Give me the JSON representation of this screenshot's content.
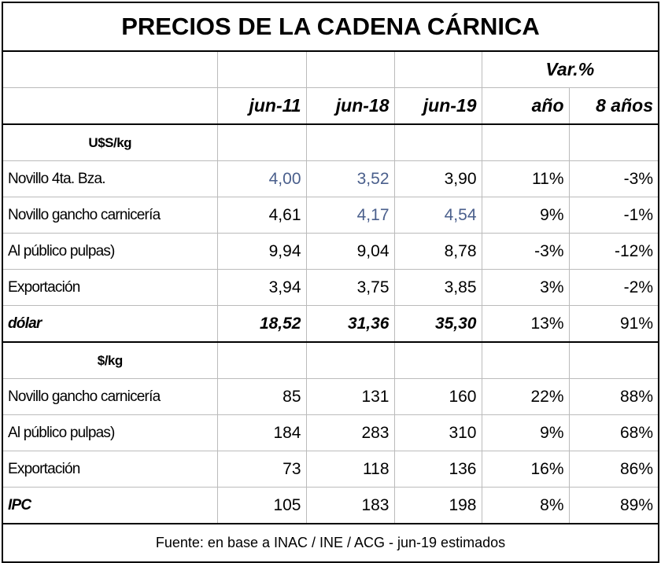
{
  "title": "PRECIOS DE LA CADENA CÁRNICA",
  "header": {
    "group": "Var.%",
    "columns": [
      "jun-11",
      "jun-18",
      "jun-19",
      "año",
      "8 años"
    ]
  },
  "sections": [
    {
      "label": "U$S/kg",
      "rows": [
        [
          "Novillo 4ta. Bza.",
          "4,00",
          "3,52",
          "3,90",
          "11%",
          "-3%"
        ],
        [
          "Novillo gancho carnicería",
          "4,61",
          "4,17",
          "4,54",
          "9%",
          "-1%"
        ],
        [
          "Al público pulpas)",
          "9,94",
          "9,04",
          "8,78",
          "-3%",
          "-12%"
        ],
        [
          "Exportación",
          "3,94",
          "3,75",
          "3,85",
          "3%",
          "-2%"
        ],
        [
          "dólar",
          "18,52",
          "31,36",
          "35,30",
          "13%",
          "91%"
        ]
      ]
    },
    {
      "label": "$/kg",
      "rows": [
        [
          "Novillo gancho carnicería",
          "85",
          "131",
          "160",
          "22%",
          "88%"
        ],
        [
          "Al público pulpas)",
          "184",
          "283",
          "310",
          "9%",
          "68%"
        ],
        [
          "Exportación",
          "73",
          "118",
          "136",
          "16%",
          "86%"
        ],
        [
          "IPC",
          "105",
          "183",
          "198",
          "8%",
          "89%"
        ]
      ]
    }
  ],
  "source": "Fuente: en base a INAC / INE / ACG - jun-19 estimados"
}
